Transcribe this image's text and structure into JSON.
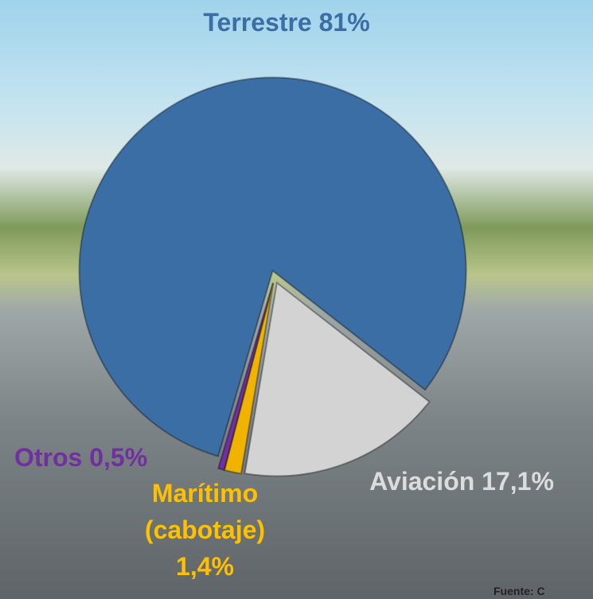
{
  "chart_data": {
    "type": "pie",
    "categories": [
      "Terrestre",
      "Aviación",
      "Marítimo (cabotaje)",
      "Otros"
    ],
    "values": [
      81,
      17.1,
      1.4,
      0.5
    ],
    "value_labels": [
      "81%",
      "17,1%",
      "1,4%",
      "0,5%"
    ],
    "colors": [
      "#3a6ea5",
      "#d3d3d3",
      "#f0b400",
      "#7030a0"
    ],
    "label_colors": [
      "#3a6ea5",
      "#dcdcdc",
      "#ffc000",
      "#7030a0"
    ],
    "source": "Fuente: C"
  }
}
